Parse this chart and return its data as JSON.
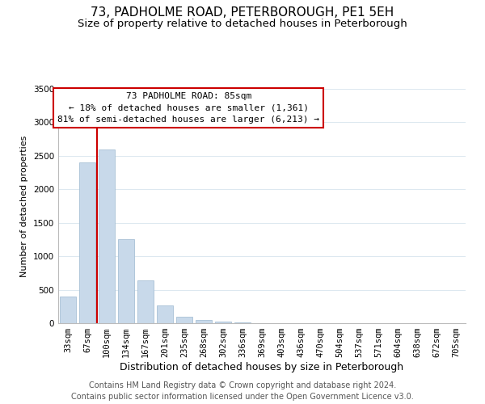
{
  "title": "73, PADHOLME ROAD, PETERBOROUGH, PE1 5EH",
  "subtitle": "Size of property relative to detached houses in Peterborough",
  "xlabel": "Distribution of detached houses by size in Peterborough",
  "ylabel": "Number of detached properties",
  "bar_labels": [
    "33sqm",
    "67sqm",
    "100sqm",
    "134sqm",
    "167sqm",
    "201sqm",
    "235sqm",
    "268sqm",
    "302sqm",
    "336sqm",
    "369sqm",
    "403sqm",
    "436sqm",
    "470sqm",
    "504sqm",
    "537sqm",
    "571sqm",
    "604sqm",
    "638sqm",
    "672sqm",
    "705sqm"
  ],
  "bar_values": [
    400,
    2400,
    2600,
    1250,
    640,
    260,
    100,
    50,
    25,
    10,
    5,
    2,
    0,
    0,
    0,
    0,
    0,
    0,
    0,
    0,
    0
  ],
  "bar_color": "#c8d9ea",
  "bar_edge_color": "#a8c0d6",
  "vline_x_idx": 1.5,
  "vline_color": "#cc0000",
  "ylim": [
    0,
    3500
  ],
  "yticks": [
    0,
    500,
    1000,
    1500,
    2000,
    2500,
    3000,
    3500
  ],
  "annotation_title": "73 PADHOLME ROAD: 85sqm",
  "annotation_line1": "← 18% of detached houses are smaller (1,361)",
  "annotation_line2": "81% of semi-detached houses are larger (6,213) →",
  "annotation_box_color": "#ffffff",
  "annotation_box_edge": "#cc0000",
  "footer_line1": "Contains HM Land Registry data © Crown copyright and database right 2024.",
  "footer_line2": "Contains public sector information licensed under the Open Government Licence v3.0.",
  "title_fontsize": 11,
  "subtitle_fontsize": 9.5,
  "xlabel_fontsize": 9,
  "ylabel_fontsize": 8,
  "tick_fontsize": 7.5,
  "annotation_fontsize": 8,
  "footer_fontsize": 7,
  "background_color": "#ffffff",
  "grid_color": "#dce8f0"
}
